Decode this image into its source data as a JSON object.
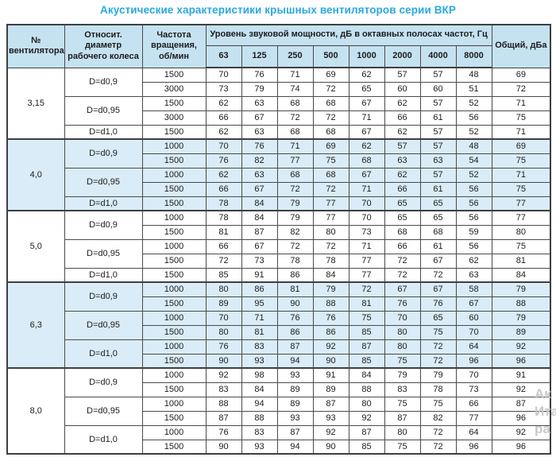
{
  "title": "Акустические характеристики крышных вентиляторов серии ВКР",
  "table": {
    "headers": {
      "fan_number": "№ вентилятора",
      "diameter": "Относит. диаметр рабочего колеса",
      "speed": "Частота вращения, об/мин",
      "spl_group": "Уровень звуковой мощности, дБ в октавных полосах частот, Гц",
      "frequencies": [
        "63",
        "125",
        "250",
        "500",
        "1000",
        "2000",
        "4000",
        "8000"
      ],
      "total": "Общий, дБа"
    },
    "sections": [
      {
        "fan": "3,15",
        "tinted": false,
        "groups": [
          {
            "diameter": "D=d0,9",
            "rows": [
              {
                "speed": "1500",
                "levels": [
                  70,
                  76,
                  71,
                  69,
                  62,
                  57,
                  57,
                  48
                ],
                "total": 69
              },
              {
                "speed": "3000",
                "levels": [
                  73,
                  79,
                  74,
                  72,
                  65,
                  60,
                  60,
                  51
                ],
                "total": 72
              }
            ]
          },
          {
            "diameter": "D=d0,95",
            "rows": [
              {
                "speed": "1500",
                "levels": [
                  62,
                  63,
                  68,
                  68,
                  67,
                  62,
                  57,
                  52
                ],
                "total": 71
              },
              {
                "speed": "3000",
                "levels": [
                  66,
                  67,
                  72,
                  72,
                  71,
                  66,
                  61,
                  56
                ],
                "total": 75
              }
            ]
          },
          {
            "diameter": "D=d1,0",
            "rows": [
              {
                "speed": "1500",
                "levels": [
                  62,
                  63,
                  68,
                  68,
                  67,
                  62,
                  57,
                  52
                ],
                "total": 71
              }
            ]
          }
        ]
      },
      {
        "fan": "4,0",
        "tinted": true,
        "groups": [
          {
            "diameter": "D=d0,9",
            "rows": [
              {
                "speed": "1000",
                "levels": [
                  70,
                  76,
                  71,
                  69,
                  62,
                  57,
                  57,
                  48
                ],
                "total": 69
              },
              {
                "speed": "1500",
                "levels": [
                  76,
                  82,
                  77,
                  75,
                  68,
                  63,
                  63,
                  54
                ],
                "total": 75
              }
            ]
          },
          {
            "diameter": "D=d0,95",
            "rows": [
              {
                "speed": "1000",
                "levels": [
                  62,
                  63,
                  68,
                  68,
                  67,
                  62,
                  57,
                  52
                ],
                "total": 71
              },
              {
                "speed": "1500",
                "levels": [
                  66,
                  67,
                  72,
                  72,
                  71,
                  66,
                  61,
                  56
                ],
                "total": 75
              }
            ]
          },
          {
            "diameter": "D=d1,0",
            "rows": [
              {
                "speed": "1500",
                "levels": [
                  78,
                  84,
                  79,
                  77,
                  70,
                  65,
                  65,
                  56
                ],
                "total": 77
              }
            ]
          }
        ]
      },
      {
        "fan": "5,0",
        "tinted": false,
        "groups": [
          {
            "diameter": "D=d0,9",
            "rows": [
              {
                "speed": "1000",
                "levels": [
                  78,
                  84,
                  79,
                  77,
                  70,
                  65,
                  65,
                  56
                ],
                "total": 77
              },
              {
                "speed": "1500",
                "levels": [
                  81,
                  87,
                  82,
                  80,
                  73,
                  68,
                  68,
                  59
                ],
                "total": 80
              }
            ]
          },
          {
            "diameter": "D=d0,95",
            "rows": [
              {
                "speed": "1000",
                "levels": [
                  66,
                  67,
                  72,
                  72,
                  71,
                  66,
                  61,
                  56
                ],
                "total": 75
              },
              {
                "speed": "1500",
                "levels": [
                  72,
                  73,
                  78,
                  78,
                  77,
                  72,
                  67,
                  62
                ],
                "total": 81
              }
            ]
          },
          {
            "diameter": "D=d1,0",
            "rows": [
              {
                "speed": "1500",
                "levels": [
                  85,
                  91,
                  86,
                  84,
                  77,
                  72,
                  72,
                  63
                ],
                "total": 84
              }
            ]
          }
        ]
      },
      {
        "fan": "6,3",
        "tinted": true,
        "groups": [
          {
            "diameter": "D=d0,9",
            "rows": [
              {
                "speed": "1000",
                "levels": [
                  80,
                  86,
                  81,
                  79,
                  72,
                  67,
                  67,
                  58
                ],
                "total": 79
              },
              {
                "speed": "1500",
                "levels": [
                  89,
                  95,
                  90,
                  88,
                  81,
                  76,
                  76,
                  67
                ],
                "total": 88
              }
            ]
          },
          {
            "diameter": "D=d0,95",
            "rows": [
              {
                "speed": "1000",
                "levels": [
                  70,
                  71,
                  76,
                  76,
                  75,
                  70,
                  65,
                  60
                ],
                "total": 79
              },
              {
                "speed": "1500",
                "levels": [
                  80,
                  81,
                  86,
                  86,
                  85,
                  80,
                  75,
                  70
                ],
                "total": 89
              }
            ]
          },
          {
            "diameter": "D=d1,0",
            "rows": [
              {
                "speed": "1000",
                "levels": [
                  76,
                  83,
                  87,
                  92,
                  87,
                  80,
                  72,
                  64
                ],
                "total": 92
              },
              {
                "speed": "1500",
                "levels": [
                  90,
                  93,
                  94,
                  90,
                  85,
                  75,
                  72,
                  96
                ],
                "total": 96
              }
            ]
          }
        ]
      },
      {
        "fan": "8,0",
        "tinted": false,
        "groups": [
          {
            "diameter": "D=d0,9",
            "rows": [
              {
                "speed": "1000",
                "levels": [
                  92,
                  98,
                  93,
                  91,
                  84,
                  79,
                  79,
                  70
                ],
                "total": 91
              },
              {
                "speed": "1500",
                "levels": [
                  83,
                  84,
                  89,
                  89,
                  88,
                  83,
                  78,
                  73
                ],
                "total": 92
              }
            ]
          },
          {
            "diameter": "D=d0,95",
            "rows": [
              {
                "speed": "1000",
                "levels": [
                  88,
                  94,
                  89,
                  87,
                  80,
                  75,
                  75,
                  66
                ],
                "total": 87
              },
              {
                "speed": "1500",
                "levels": [
                  87,
                  88,
                  93,
                  93,
                  92,
                  87,
                  82,
                  77
                ],
                "total": 96
              }
            ]
          },
          {
            "diameter": "D=d1,0",
            "rows": [
              {
                "speed": "1000",
                "levels": [
                  76,
                  83,
                  87,
                  92,
                  87,
                  80,
                  72,
                  64
                ],
                "total": 92
              },
              {
                "speed": "1500",
                "levels": [
                  90,
                  93,
                  94,
                  90,
                  85,
                  75,
                  72,
                  96
                ],
                "total": 96
              }
            ]
          }
        ]
      }
    ]
  },
  "watermark": [
    "Ак",
    "Ита",
    "ра"
  ],
  "colors": {
    "title": "#29a8e0",
    "header_bg": "#c5e2f1",
    "tint_bg": "#d9ecf7",
    "border": "#4b4b4b",
    "text": "#1c1c1c",
    "watermark": "#c9c9c9"
  }
}
